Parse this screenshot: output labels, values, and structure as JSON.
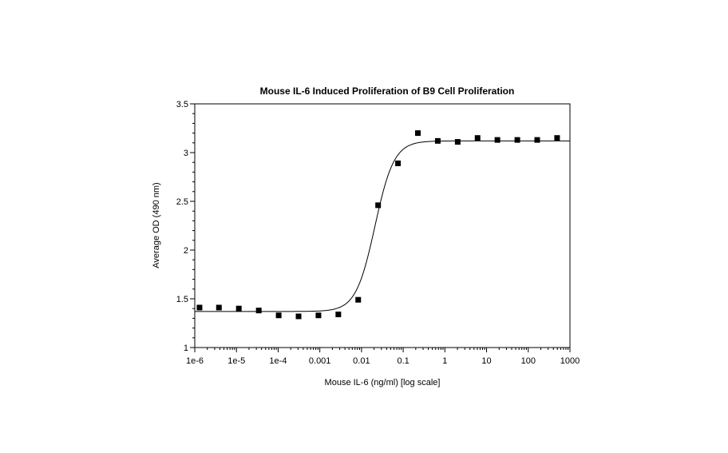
{
  "chart_data": {
    "type": "scatter",
    "title": "Mouse IL-6 Induced Proliferation of B9 Cell Proliferation",
    "xlabel": "Mouse IL-6 (ng/ml) [log scale]",
    "ylabel": "Average OD (490 nm)",
    "x_scale": "log",
    "xlim": [
      1e-06,
      1000
    ],
    "ylim": [
      1,
      3.5
    ],
    "x_ticks": [
      1e-06,
      1e-05,
      0.0001,
      0.001,
      0.01,
      0.1,
      1,
      10,
      100,
      1000
    ],
    "x_tick_labels": [
      "1e-6",
      "1e-5",
      "1e-4",
      "0.001",
      "0.01",
      "0.1",
      "1",
      "10",
      "100",
      "1000"
    ],
    "y_ticks": [
      1,
      1.5,
      2,
      2.5,
      3,
      3.5
    ],
    "y_tick_labels": [
      "1",
      "1.5",
      "2",
      "2.5",
      "3",
      "3.5"
    ],
    "grid": false,
    "legend": "none",
    "series": [
      {
        "marker": "square",
        "color": "#000000",
        "x": [
          1.3e-06,
          3.8e-06,
          1.14e-05,
          3.43e-05,
          0.000103,
          0.000309,
          0.000926,
          0.00278,
          0.00833,
          0.025,
          0.075,
          0.225,
          0.675,
          2.03,
          6.08,
          18.2,
          54.7,
          164,
          492
        ],
        "y": [
          1.41,
          1.41,
          1.4,
          1.38,
          1.33,
          1.32,
          1.33,
          1.34,
          1.49,
          2.46,
          2.89,
          3.2,
          3.12,
          3.11,
          3.15,
          3.13,
          3.13,
          3.13,
          3.15
        ]
      }
    ],
    "fit": {
      "type": "4PL",
      "bottom": 1.37,
      "top": 3.12,
      "ec50": 0.021,
      "hill": 1.9,
      "color": "#000000"
    }
  }
}
